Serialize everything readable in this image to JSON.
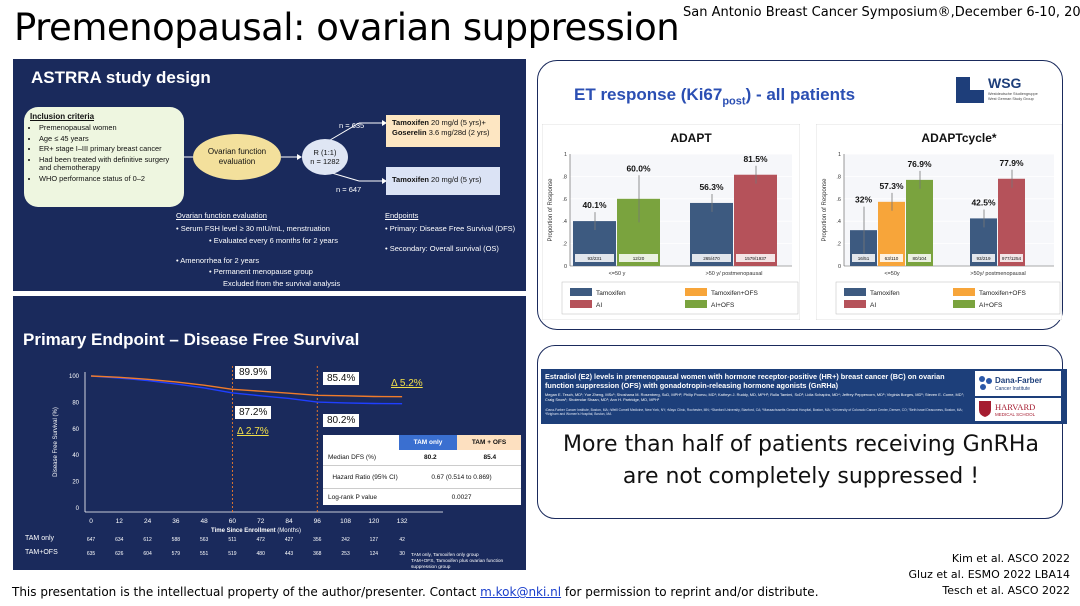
{
  "page": {
    "title": "Premenopausal: ovarian suppression",
    "conference": "San Antonio Breast Cancer Symposium®,December 6-10, 2022",
    "footer_prefix": "This presentation is the intellectual property of the author/presenter. Contact ",
    "footer_email": "m.kok@nki.nl",
    "footer_suffix": " for permission to reprint and/or distribute.",
    "references": [
      "Kim et al. ASCO 2022",
      "Gluz et al. ESMO 2022 LBA14",
      "Tesch et al. ASCO 2022"
    ]
  },
  "astrra": {
    "title": "ASTRRA study design",
    "inclusion_title": "Inclusion criteria",
    "inclusion_items": [
      "Premenopausal women",
      "Age ≤ 45 years",
      "ER+ stage I–III primary breast cancer",
      "Had been treated with definitive surgery and chemotherapy",
      "WHO performance status of 0–2"
    ],
    "ofe_label": "Ovarian function evaluation",
    "randomization": "R (1:1)",
    "n_total": "n = 1282",
    "n_arm1": "n = 635",
    "n_arm2": "n = 647",
    "arm1_line1_drug": "Tamoxifen",
    "arm1_line1_dose": " 20 mg/d (5 yrs)+",
    "arm1_line2_drug": "Goserelin",
    "arm1_line2_dose": " 3.6 mg/28d (2 yrs)",
    "arm2_drug": "Tamoxifen",
    "arm2_dose": " 20 mg/d (5 yrs)",
    "ofe_detail_title": "Ovarian function evaluation",
    "ofe_detail_1": "Serum FSH level ≥ 30 mIU/mL, menstruation",
    "ofe_detail_2": "Evaluated every 6 months for 2 years",
    "ofe_detail_3": "Amenorrhea for 2 years",
    "ofe_detail_4": "Permanent menopause group",
    "ofe_detail_5": "Excluded from the survival analysis",
    "endpoints_title": "Endpoints",
    "endpoint_primary": "Primary: Disease Free Survival (DFS)",
    "endpoint_secondary": "Secondary: Overall survival (OS)"
  },
  "dfs": {
    "title": "Primary Endpoint – Disease Free Survival",
    "ylabel": "Disease Free Survival (%)",
    "xlabel_bold": "Time Since Enrollment",
    "xlabel_unit": " (Months)",
    "xticks": [
      "0",
      "12",
      "24",
      "36",
      "48",
      "60",
      "72",
      "84",
      "96",
      "108",
      "120",
      "132"
    ],
    "yticks": [
      "100",
      "80",
      "60",
      "40",
      "20",
      "0"
    ],
    "label_60_top": "89.9%",
    "label_60_bottom": "87.2%",
    "delta_60": "Δ 2.7%",
    "label_96_top": "85.4%",
    "label_96_bottom": "80.2%",
    "delta_96": "Δ 5.2%",
    "table_headers": [
      "",
      "TAM only",
      "TAM + OFS"
    ],
    "table_rows": [
      [
        "Median DFS (%)",
        "80.2",
        "85.4"
      ],
      [
        "Hazard Ratio (95% CI)",
        "0.67 (0.514 to 0.869)",
        ""
      ],
      [
        "Log-rank P value",
        "0.0027",
        ""
      ]
    ],
    "risk_label_1": "TAM only",
    "risk_label_2": "TAM+OFS",
    "risk_row_1": [
      "647",
      "634",
      "612",
      "588",
      "563",
      "511",
      "472",
      "427",
      "356",
      "242",
      "127",
      "42"
    ],
    "risk_row_2": [
      "635",
      "626",
      "604",
      "579",
      "551",
      "519",
      "480",
      "443",
      "368",
      "253",
      "124",
      "30"
    ],
    "risk_note_1": "TAM only, Tamoxifen only group",
    "risk_note_2": "TAM+OFS, Tamoxifen plus ovarian function suppression group",
    "colors": {
      "tam": "#1f3fff",
      "ofs": "#f07b2a"
    }
  },
  "et": {
    "title_main": "ET response (Ki67",
    "title_sub": "post",
    "title_end": ") - all patients",
    "logo_text": "WSG",
    "logo_sub1": "Westdeutsche Studiengruppe",
    "logo_sub2": "West German Study Group"
  },
  "chart_data": [
    {
      "type": "bar",
      "title": "ADAPT",
      "ylabel": "Proportion of Response",
      "categories": [
        "<=50 y",
        ">50 y/ postmenopausal"
      ],
      "ylim": [
        0,
        1
      ],
      "yticks": [
        "0",
        ".2",
        ".4",
        ".6",
        ".8",
        "1"
      ],
      "series": [
        {
          "name": "Tamoxifen",
          "values": [
            0.401,
            0.563
          ],
          "labels": [
            "40.1%",
            "56.3%"
          ],
          "counts": [
            "93/231",
            "265/470"
          ],
          "color": "#3d5a80"
        },
        {
          "name": "Tamoxifen+OFS",
          "values": [
            null,
            null
          ],
          "labels": [],
          "counts": [],
          "color": "#f7a53a"
        },
        {
          "name": "AI",
          "values": [
            null,
            0.815
          ],
          "labels": [
            "",
            "81.5%"
          ],
          "counts": [
            "",
            "1579/1937"
          ],
          "color": "#b5525a"
        },
        {
          "name": "AI+OFS",
          "values": [
            0.6,
            null
          ],
          "labels": [
            "60.0%",
            ""
          ],
          "counts": [
            "12/20",
            ""
          ],
          "color": "#7aa33e"
        }
      ]
    },
    {
      "type": "bar",
      "title": "ADAPTcycle*",
      "ylabel": "Proportion of Response",
      "categories": [
        "<=50y",
        ">50y/ postmenopausal"
      ],
      "ylim": [
        0,
        1
      ],
      "yticks": [
        "0",
        ".2",
        ".4",
        ".6",
        ".8",
        "1"
      ],
      "series": [
        {
          "name": "Tamoxifen",
          "values": [
            0.32,
            0.425
          ],
          "labels": [
            "32%",
            "42.5%"
          ],
          "counts": [
            "16/51",
            "93/219"
          ],
          "color": "#3d5a80"
        },
        {
          "name": "Tamoxifen+OFS",
          "values": [
            0.573,
            null
          ],
          "labels": [
            "57.3%",
            ""
          ],
          "counts": [
            "63/110",
            ""
          ],
          "color": "#f7a53a"
        },
        {
          "name": "AI",
          "values": [
            null,
            0.779
          ],
          "labels": [
            "",
            "77.9%"
          ],
          "counts": [
            "",
            "977/1254"
          ],
          "color": "#b5525a"
        },
        {
          "name": "AI+OFS",
          "values": [
            0.769,
            null
          ],
          "labels": [
            "76.9%",
            ""
          ],
          "counts": [
            "80/104",
            ""
          ],
          "color": "#7aa33e"
        }
      ]
    }
  ],
  "e2": {
    "paper_title": "Estradiol (E2) levels in premenopausal women with hormone receptor-positive (HR+) breast cancer (BC) on ovarian function suppression (OFS) with gonadotropin-releasing hormone agonists (GnRHa)",
    "authors": "Megan E. Tesch, MD¹; Yue Zheng, MSc¹; Shoshana M. Rosenberg, ScD, MPH²; Philip Poorvu, MD¹; Kathryn J. Ruddy, MD, MPH³; Rulla Tamimi, ScD²; Lidia Schapira, MD⁴; Jeffrey Peppercorn, MD⁵; Virginia Borges, MD⁶; Steven E. Come, MD⁷; Craig Snow¹; Shoiendar Shaan, MD¹; Ann H. Partridge, MD, MPH¹",
    "affiliations": "¹Dana-Farber Cancer Institute, Boston, MA; ²Weill Cornell Medicine, New York, NY; ³Mayo Clinic, Rochester, MN; ⁴Stanford University, Stanford, CA; ⁵Massachusetts General Hospital, Boston, MA; ⁶University of Colorado Cancer Center, Denver, CO; ⁷Beth Israel Deaconess, Boston, MA; ⁸Brigham and Women's Hospital, Boston, MA",
    "logo1": "Dana-Farber",
    "logo1_sub": "Cancer Institute",
    "logo2": "HARVARD",
    "logo2_sub": "MEDICAL SCHOOL",
    "statement_line1": "More than half of patients receiving GnRHa",
    "statement_line2": "are not completely suppressed !"
  }
}
